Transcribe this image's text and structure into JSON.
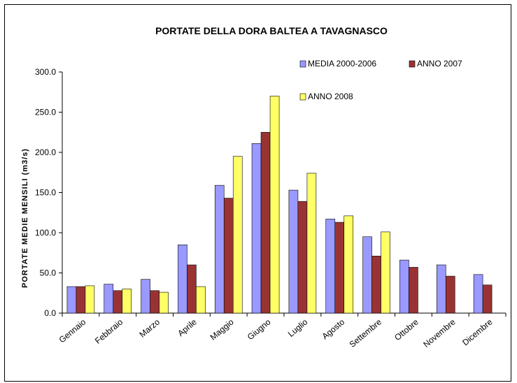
{
  "chart_data": {
    "type": "bar",
    "title": "PORTATE DELLA DORA BALTEA  A TAVAGNASCO",
    "xlabel": "",
    "ylabel": "PORTATE MEDIE MENSILI (m3/s)",
    "ylim": [
      0,
      300
    ],
    "yticks": [
      "0.0",
      "50.0",
      "100.0",
      "150.0",
      "200.0",
      "250.0",
      "300.0"
    ],
    "grid": false,
    "legend_position": "top-right",
    "categories": [
      "Gennaio",
      "Febbraio",
      "Marzo",
      "Aprile",
      "Maggio",
      "Giugno",
      "Luglio",
      "Agosto",
      "Settembre",
      "Ottobre",
      "Novembre",
      "Dicembre"
    ],
    "series": [
      {
        "name": "MEDIA 2000-2006",
        "color": "#9999ff",
        "values": [
          33,
          36,
          42,
          85,
          159,
          211,
          153,
          117,
          95,
          66,
          60,
          48
        ]
      },
      {
        "name": "ANNO 2007",
        "color": "#993333",
        "values": [
          33,
          28,
          28,
          60,
          143,
          225,
          139,
          113,
          71,
          57,
          46,
          35
        ]
      },
      {
        "name": "ANNO 2008",
        "color": "#ffff66",
        "values": [
          34,
          30,
          26,
          33,
          195,
          270,
          174,
          121,
          101,
          null,
          null,
          null
        ]
      }
    ]
  }
}
